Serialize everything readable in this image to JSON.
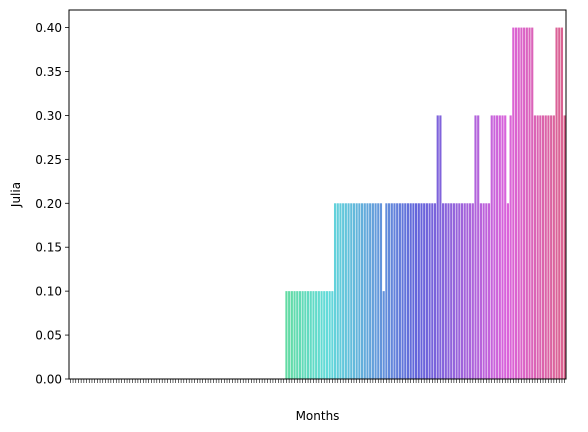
{
  "chart_data": {
    "type": "bar",
    "xlabel": "Months",
    "ylabel": "Julia",
    "ylim": [
      0,
      0.42
    ],
    "y_ticks": [
      "0.00",
      "0.05",
      "0.10",
      "0.15",
      "0.20",
      "0.25",
      "0.30",
      "0.35",
      "0.40"
    ],
    "y_tick_values": [
      0,
      0.05,
      0.1,
      0.15,
      0.2,
      0.25,
      0.3,
      0.35,
      0.4
    ],
    "grid": false,
    "palette": "husl",
    "values": [
      0,
      0,
      0,
      0,
      0,
      0,
      0,
      0,
      0,
      0,
      0,
      0,
      0,
      0,
      0,
      0,
      0,
      0,
      0,
      0,
      0,
      0,
      0,
      0,
      0,
      0,
      0,
      0,
      0,
      0,
      0,
      0,
      0,
      0,
      0,
      0,
      0,
      0,
      0,
      0,
      0,
      0,
      0,
      0,
      0,
      0,
      0,
      0,
      0,
      0,
      0,
      0,
      0,
      0,
      0,
      0,
      0,
      0,
      0,
      0,
      0,
      0,
      0,
      0,
      0,
      0,
      0,
      0,
      0,
      0,
      0,
      0,
      0,
      0,
      0,
      0,
      0,
      0,
      0,
      0,
      0.1,
      0.1,
      0.1,
      0.1,
      0.1,
      0.1,
      0.1,
      0.1,
      0.1,
      0.1,
      0.1,
      0.1,
      0.1,
      0.1,
      0.1,
      0.1,
      0.1,
      0.1,
      0.2,
      0.2,
      0.2,
      0.2,
      0.2,
      0.2,
      0.2,
      0.2,
      0.2,
      0.2,
      0.2,
      0.2,
      0.2,
      0.2,
      0.2,
      0.2,
      0.2,
      0.2,
      0.1,
      0.2,
      0.2,
      0.2,
      0.2,
      0.2,
      0.2,
      0.2,
      0.2,
      0.2,
      0.2,
      0.2,
      0.2,
      0.2,
      0.2,
      0.2,
      0.2,
      0.2,
      0.2,
      0.2,
      0.3,
      0.3,
      0.2,
      0.2,
      0.2,
      0.2,
      0.2,
      0.2,
      0.2,
      0.2,
      0.2,
      0.2,
      0.2,
      0.2,
      0.3,
      0.3,
      0.2,
      0.2,
      0.2,
      0.2,
      0.3,
      0.3,
      0.3,
      0.3,
      0.3,
      0.3,
      0.2,
      0.3,
      0.4,
      0.4,
      0.4,
      0.4,
      0.4,
      0.4,
      0.4,
      0.4,
      0.3,
      0.3,
      0.3,
      0.3,
      0.3,
      0.3,
      0.3,
      0.3,
      0.4,
      0.4,
      0.4,
      0.3
    ]
  }
}
